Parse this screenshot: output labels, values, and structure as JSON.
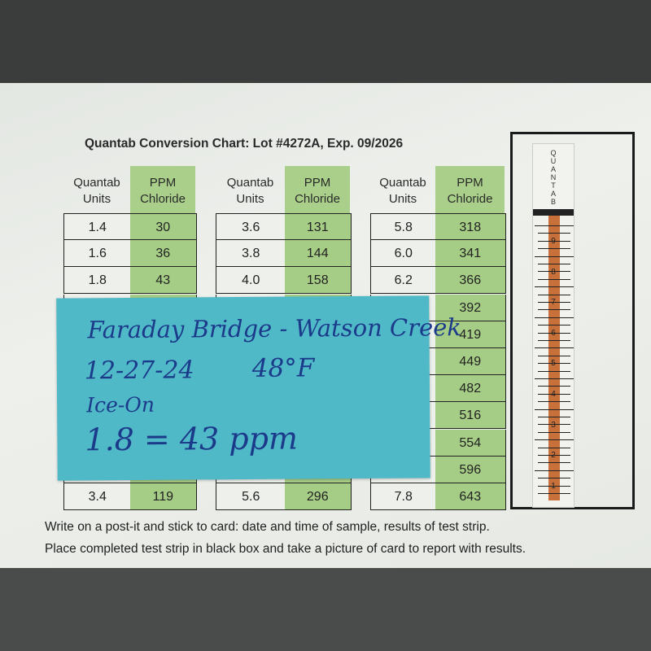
{
  "title": "Quantab Conversion Chart: Lot #4272A, Exp. 09/2026",
  "headers": {
    "units": "Quantab Units",
    "ppm": "PPM Chloride"
  },
  "tables": [
    {
      "rows": [
        [
          "1.4",
          "30"
        ],
        [
          "1.6",
          "36"
        ],
        [
          "1.8",
          "43"
        ],
        [
          null,
          null
        ],
        [
          null,
          null
        ],
        [
          null,
          null
        ],
        [
          null,
          null
        ],
        [
          null,
          null
        ],
        [
          null,
          null
        ],
        [
          null,
          null
        ],
        [
          "3.4",
          "119"
        ]
      ]
    },
    {
      "rows": [
        [
          "3.6",
          "131"
        ],
        [
          "3.8",
          "144"
        ],
        [
          "4.0",
          "158"
        ],
        [
          null,
          null
        ],
        [
          null,
          null
        ],
        [
          null,
          null
        ],
        [
          null,
          null
        ],
        [
          null,
          null
        ],
        [
          null,
          null
        ],
        [
          null,
          null
        ],
        [
          "5.6",
          "296"
        ]
      ]
    },
    {
      "rows": [
        [
          "5.8",
          "318"
        ],
        [
          "6.0",
          "341"
        ],
        [
          "6.2",
          "366"
        ],
        [
          null,
          "392"
        ],
        [
          null,
          "419"
        ],
        [
          null,
          "449"
        ],
        [
          null,
          "482"
        ],
        [
          null,
          "516"
        ],
        [
          null,
          "554"
        ],
        [
          null,
          "596"
        ],
        [
          "7.8",
          "643"
        ]
      ]
    }
  ],
  "strip": {
    "label": "QUANTAB",
    "scale": [
      "9",
      "8",
      "7",
      "6",
      "5",
      "4",
      "3",
      "2",
      "1"
    ],
    "fill_color": "#c7703a"
  },
  "note": {
    "line1": "Faraday Bridge - Watson Creek",
    "line2_date": "12-27-24",
    "line2_temp": "48°F",
    "line3": "Ice-On",
    "line4": "1.8 = 43 ppm"
  },
  "instructions": [
    "Write on a post-it and stick to card: date and time of sample, results of test strip.",
    "Place completed test strip in black box and take a picture of card to report with results."
  ]
}
